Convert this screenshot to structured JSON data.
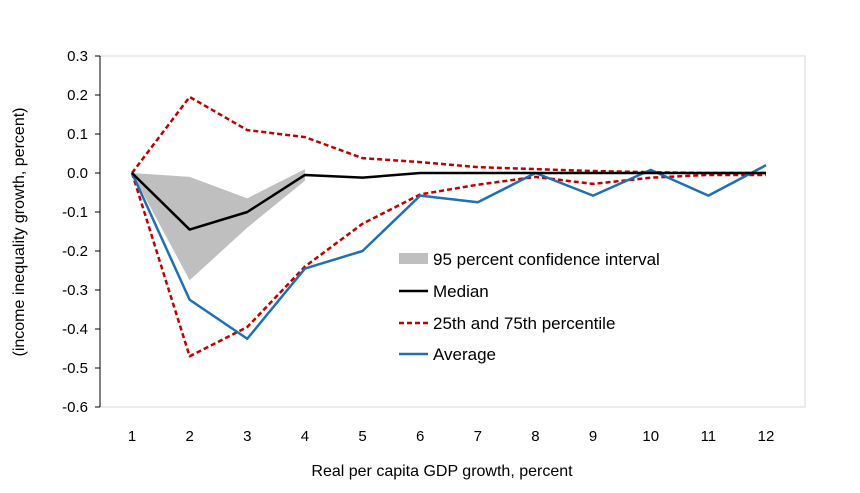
{
  "chart_data": {
    "type": "line",
    "title": "",
    "xlabel": "Real per capita GDP growth, percent",
    "ylabel": "(income inequality growth, percent)",
    "x": [
      1,
      2,
      3,
      4,
      5,
      6,
      7,
      8,
      9,
      10,
      11,
      12
    ],
    "x_tick_labels": [
      "1",
      "2",
      "3",
      "4",
      "5",
      "6",
      "7",
      "8",
      "9",
      "10",
      "11",
      "12"
    ],
    "ylim": [
      -0.6,
      0.3
    ],
    "y_ticks": [
      0.3,
      0.2,
      0.1,
      0.0,
      -0.1,
      -0.2,
      -0.3,
      -0.4,
      -0.5,
      -0.6
    ],
    "y_tick_labels": [
      "0.3",
      "0.2",
      "0.1",
      "0.0",
      "-0.1",
      "-0.2",
      "-0.3",
      "-0.4",
      "-0.5",
      "-0.6"
    ],
    "grid": false,
    "legend_position": "center-right",
    "confidence_band": {
      "name": "95 percent confidence interval",
      "color": "#bfbfbf",
      "x": [
        1,
        2,
        3,
        4
      ],
      "upper": [
        0.0,
        -0.01,
        -0.065,
        0.01
      ],
      "lower": [
        0.0,
        -0.275,
        -0.14,
        -0.02
      ]
    },
    "series": [
      {
        "name": "Median",
        "color": "#000000",
        "style": "solid",
        "x": [
          1,
          2,
          3,
          4,
          5,
          6,
          7,
          8,
          9,
          10,
          11,
          12
        ],
        "values": [
          0.0,
          -0.145,
          -0.1,
          -0.005,
          -0.012,
          0.0,
          0.0,
          0.0,
          0.0,
          0.0,
          0.0,
          0.0
        ]
      },
      {
        "name": "25th and 75th percentile",
        "color": "#c00000",
        "style": "dashed",
        "x": [
          1,
          2,
          3,
          4,
          5,
          6,
          7,
          8,
          9,
          10,
          11,
          12
        ],
        "values": [
          0.0,
          0.195,
          0.11,
          0.092,
          0.038,
          0.028,
          0.015,
          0.01,
          0.005,
          0.002,
          0.0,
          0.0
        ]
      },
      {
        "name": "",
        "color": "#c00000",
        "style": "dashed",
        "x": [
          1,
          2,
          3,
          4,
          5,
          6,
          7,
          8,
          9,
          10,
          11,
          12
        ],
        "values": [
          0.0,
          -0.47,
          -0.395,
          -0.24,
          -0.13,
          -0.055,
          -0.03,
          -0.01,
          -0.028,
          -0.012,
          -0.005,
          -0.005
        ]
      },
      {
        "name": "Average",
        "color": "#1f6fb2",
        "style": "solid",
        "x": [
          1,
          2,
          3,
          4,
          5,
          6,
          7,
          8,
          9,
          10,
          11,
          12
        ],
        "values": [
          0.0,
          -0.325,
          -0.425,
          -0.245,
          -0.2,
          -0.058,
          -0.075,
          0.0,
          -0.058,
          0.008,
          -0.058,
          0.02
        ]
      }
    ]
  }
}
